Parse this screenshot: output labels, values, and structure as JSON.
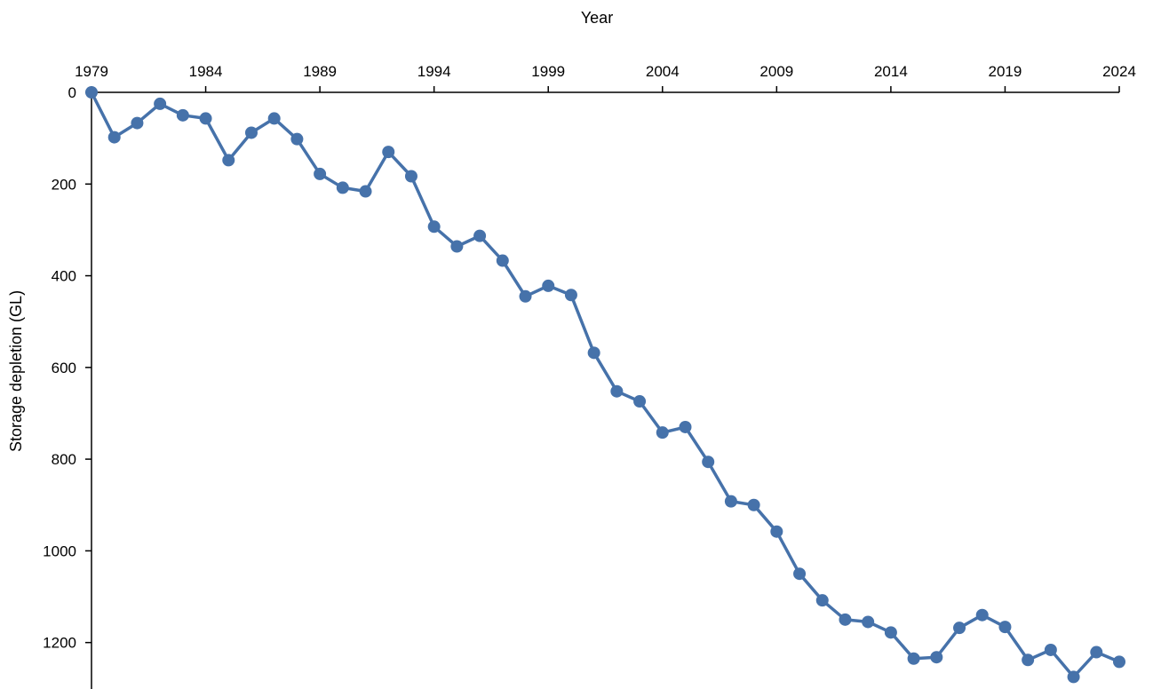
{
  "chart_data": {
    "type": "line",
    "title": "",
    "xlabel": "Year",
    "ylabel": "Storage depletion (GL)",
    "x_axis_position": "top",
    "y_axis_inverted": true,
    "grid": false,
    "legend": "none",
    "xlim": [
      1979,
      2024
    ],
    "ylim": [
      0,
      1300
    ],
    "x_ticks": [
      1979,
      1984,
      1989,
      1994,
      1999,
      2004,
      2009,
      2014,
      2019,
      2024
    ],
    "y_ticks": [
      0,
      200,
      400,
      600,
      800,
      1000,
      1200
    ],
    "x": [
      1979,
      1980,
      1981,
      1982,
      1983,
      1984,
      1985,
      1986,
      1987,
      1988,
      1989,
      1990,
      1991,
      1992,
      1993,
      1994,
      1995,
      1996,
      1997,
      1998,
      1999,
      2000,
      2001,
      2002,
      2003,
      2004,
      2005,
      2006,
      2007,
      2008,
      2009,
      2010,
      2011,
      2012,
      2013,
      2014,
      2015,
      2016,
      2017,
      2018,
      2019,
      2020,
      2021,
      2022,
      2023,
      2024
    ],
    "series": [
      {
        "values": [
          0,
          98,
          67,
          25,
          50,
          57,
          148,
          88,
          57,
          102,
          178,
          208,
          216,
          130,
          183,
          293,
          336,
          313,
          367,
          445,
          422,
          442,
          568,
          652,
          674,
          742,
          730,
          806,
          892,
          900,
          958,
          1050,
          1108,
          1150,
          1155,
          1178,
          1235,
          1232,
          1168,
          1140,
          1166,
          1238,
          1216,
          1275,
          1221,
          1242
        ],
        "color": "#4672aa"
      }
    ]
  }
}
